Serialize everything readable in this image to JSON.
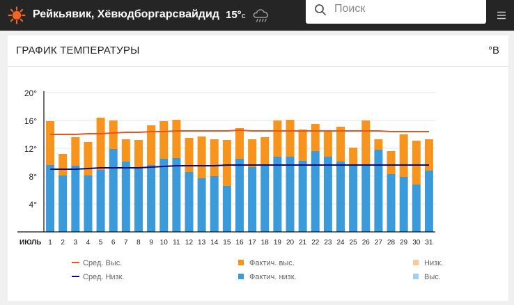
{
  "header": {
    "location": "Рейкьявик, Хёвюдборгарсвайдид",
    "current_temp": "15°",
    "temp_unit": "c",
    "weather_icon": "rain-cloud-icon",
    "logo_icon": "sun-icon",
    "search": {
      "placeholder": "Поиск"
    },
    "menu_icon": "menu-icon"
  },
  "card": {
    "title": "ГРАФИК ТЕМПЕРАТУРЫ",
    "unit_toggle": "°В"
  },
  "colors": {
    "actual_high": "#f7941d",
    "actual_low": "#3b9ad9",
    "avg_high": "#e8541e",
    "avg_low": "#0a0a80",
    "record_low": "#fdc896",
    "record_high": "#9fcfee"
  },
  "chart_data": {
    "type": "bar",
    "month_label": "ИЮЛЬ",
    "categories": [
      "1",
      "2",
      "3",
      "4",
      "5",
      "6",
      "7",
      "8",
      "9",
      "10",
      "11",
      "12",
      "13",
      "14",
      "15",
      "16",
      "17",
      "18",
      "19",
      "20",
      "21",
      "22",
      "23",
      "24",
      "25",
      "26",
      "27",
      "28",
      "29",
      "30",
      "31"
    ],
    "y_ticks": [
      "4°",
      "8°",
      "12°",
      "16°",
      "20°"
    ],
    "ylim": [
      0,
      20
    ],
    "grid": true,
    "series": [
      {
        "name": "Фактич. выс.",
        "kind": "bar",
        "values": [
          15.9,
          11.2,
          13.6,
          12.9,
          16.4,
          16.0,
          13.3,
          13.2,
          15.3,
          15.9,
          16.1,
          13.5,
          13.7,
          13.3,
          13.2,
          14.9,
          13.3,
          13.6,
          16.0,
          16.1,
          14.7,
          15.5,
          14.4,
          15.1,
          12.1,
          16.0,
          13.3,
          11.6,
          14.0,
          13.1,
          13.3
        ]
      },
      {
        "name": "Фактич. низк.",
        "kind": "bar",
        "values": [
          9.6,
          8.1,
          9.5,
          8.1,
          8.9,
          11.9,
          10.1,
          9.2,
          9.6,
          10.5,
          10.6,
          8.6,
          7.7,
          8.0,
          6.6,
          10.5,
          9.3,
          9.6,
          10.8,
          10.8,
          10.2,
          11.6,
          10.8,
          10.1,
          9.5,
          9.5,
          11.8,
          8.3,
          7.9,
          6.8,
          8.8
        ]
      },
      {
        "name": "Сред. Выс.",
        "kind": "line",
        "values": [
          14.0,
          14.0,
          14.0,
          14.1,
          14.1,
          14.2,
          14.3,
          14.3,
          14.4,
          14.4,
          14.5,
          14.5,
          14.5,
          14.5,
          14.5,
          14.6,
          14.5,
          14.5,
          14.5,
          14.5,
          14.5,
          14.5,
          14.5,
          14.5,
          14.5,
          14.5,
          14.5,
          14.4,
          14.4,
          14.4,
          14.4
        ]
      },
      {
        "name": "Сред. Низк.",
        "kind": "line",
        "values": [
          9.0,
          9.0,
          9.0,
          9.1,
          9.2,
          9.2,
          9.2,
          9.2,
          9.3,
          9.4,
          9.5,
          9.5,
          9.5,
          9.5,
          9.6,
          9.6,
          9.6,
          9.6,
          9.6,
          9.6,
          9.6,
          9.6,
          9.6,
          9.6,
          9.6,
          9.6,
          9.6,
          9.6,
          9.6,
          9.6,
          9.6
        ]
      }
    ],
    "legend": [
      {
        "label": "Сред. Выс.",
        "kind": "line",
        "color": "#e8541e"
      },
      {
        "label": "Фактич. выс.",
        "kind": "box",
        "color": "#f7941d"
      },
      {
        "label": "Низк.",
        "kind": "box",
        "color": "#fdc896"
      },
      {
        "label": "Сред. Низк.",
        "kind": "line",
        "color": "#0a0a80"
      },
      {
        "label": "Фактич. низк.",
        "kind": "box",
        "color": "#3b9ad9"
      },
      {
        "label": "Выс.",
        "kind": "box",
        "color": "#9fcfee"
      }
    ]
  }
}
